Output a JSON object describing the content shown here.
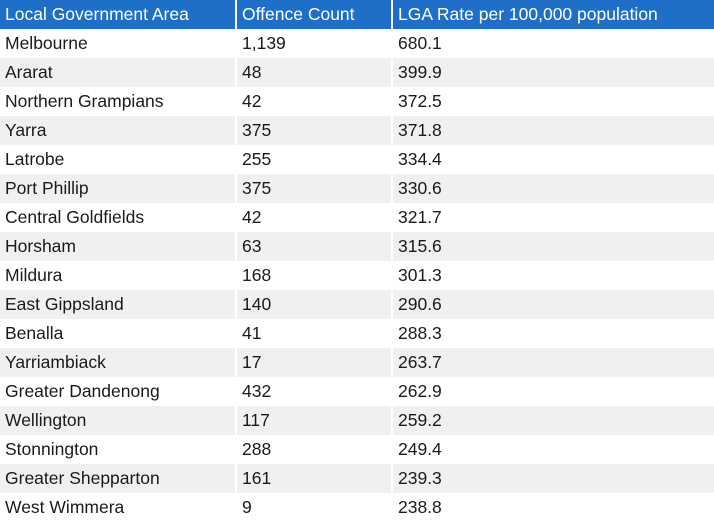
{
  "table": {
    "headers": [
      "Local Government Area",
      "Offence Count",
      "LGA Rate per 100,000 population"
    ],
    "rows": [
      [
        "Melbourne",
        "1,139",
        "680.1"
      ],
      [
        "Ararat",
        "48",
        "399.9"
      ],
      [
        "Northern Grampians",
        "42",
        "372.5"
      ],
      [
        "Yarra",
        "375",
        "371.8"
      ],
      [
        "Latrobe",
        "255",
        "334.4"
      ],
      [
        "Port Phillip",
        "375",
        "330.6"
      ],
      [
        "Central Goldfields",
        "42",
        "321.7"
      ],
      [
        "Horsham",
        "63",
        "315.6"
      ],
      [
        "Mildura",
        "168",
        "301.3"
      ],
      [
        "East Gippsland",
        "140",
        "290.6"
      ],
      [
        "Benalla",
        "41",
        "288.3"
      ],
      [
        "Yarriambiack",
        "17",
        "263.7"
      ],
      [
        "Greater Dandenong",
        "432",
        "262.9"
      ],
      [
        "Wellington",
        "117",
        "259.2"
      ],
      [
        "Stonnington",
        "288",
        "249.4"
      ],
      [
        "Greater Shepparton",
        "161",
        "239.3"
      ],
      [
        "West Wimmera",
        "9",
        "238.8"
      ]
    ]
  },
  "colors": {
    "header_background": "#1f6fc8",
    "header_text": "#ffffff",
    "alt_row_background": "#f0f0f0"
  }
}
